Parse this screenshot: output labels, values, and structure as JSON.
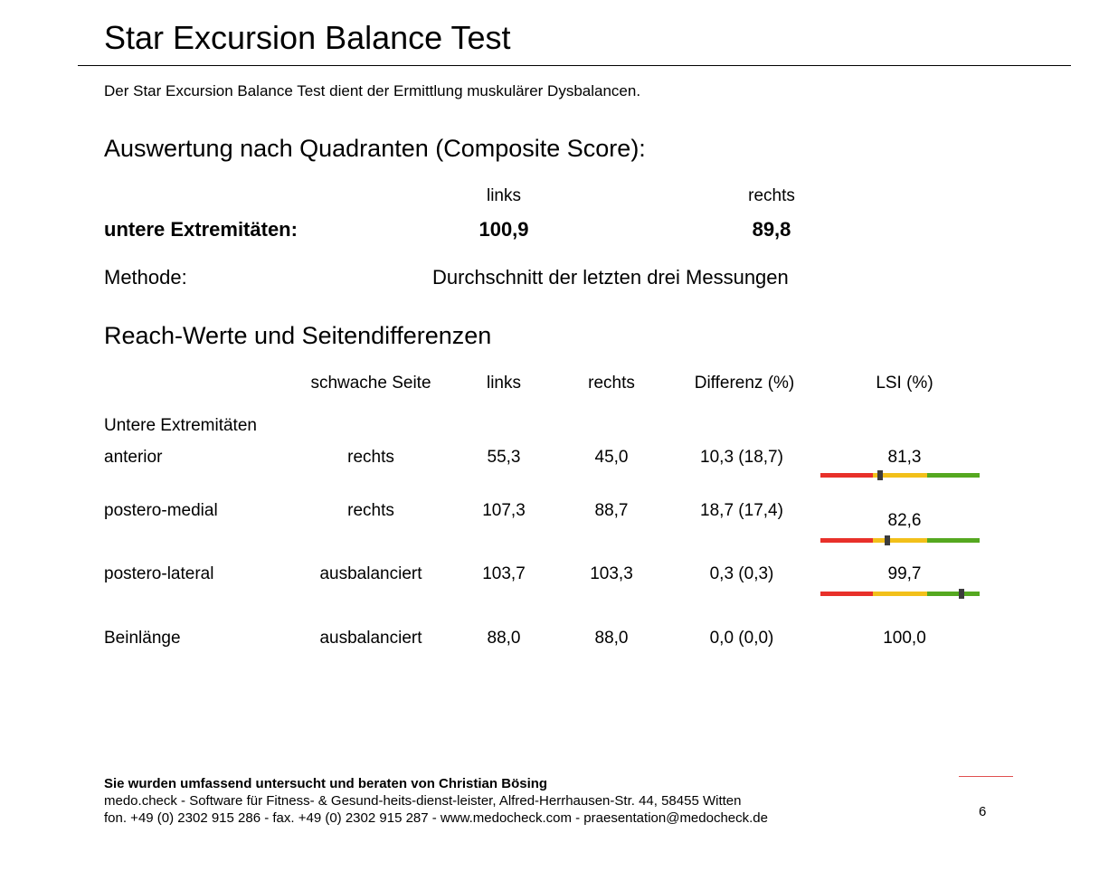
{
  "header": {
    "title": "Star Excursion Balance Test",
    "intro": "Der Star Excursion Balance Test dient der Ermittlung muskulärer Dysbalancen."
  },
  "composite": {
    "heading": "Auswertung nach Quadranten (Composite Score):",
    "col_left": "links",
    "col_right": "rechts",
    "row_label": "untere Extremitäten:",
    "left_value": "100,9",
    "right_value": "89,8",
    "method_label": "Methode:",
    "method_value": "Durchschnitt der letzten drei Messungen"
  },
  "reach": {
    "heading": "Reach-Werte und Seitendifferenzen",
    "columns": {
      "weak_side": "schwache Seite",
      "left": "links",
      "right": "rechts",
      "diff": "Differenz (%)",
      "lsi": "LSI (%)"
    },
    "group_label": "Untere Extremitäten",
    "rows": [
      {
        "label": "anterior",
        "weak_side": "rechts",
        "left": "55,3",
        "right": "45,0",
        "diff": "10,3 (18,7)",
        "lsi": "81,3",
        "lsi_level": 81.3
      },
      {
        "label": "postero-medial",
        "weak_side": "rechts",
        "left": "107,3",
        "right": "88,7",
        "diff": "18,7 (17,4)",
        "lsi": "82,6",
        "lsi_level": 82.6
      },
      {
        "label": "postero-lateral",
        "weak_side": "ausbalanciert",
        "left": "103,7",
        "right": "103,3",
        "diff": "0,3 (0,3)",
        "lsi": "99,7",
        "lsi_level": 99.7
      },
      {
        "label": "Beinlänge",
        "weak_side": "ausbalanciert",
        "left": "88,0",
        "right": "88,0",
        "diff": "0,0 (0,0)",
        "lsi": "100,0"
      }
    ]
  },
  "colors": {
    "bar_red": "#e8302a",
    "bar_yellow": "#f2c01a",
    "bar_green": "#55a820",
    "marker": "#3c3c3c",
    "accent_line": "#e05050"
  },
  "footer": {
    "advisor": "Sie wurden umfassend untersucht und beraten von Christian Bösing",
    "company": "medo.check - Software für Fitness- & Gesund-heits-dienst-leister, Alfred-Herrhausen-Str. 44, 58455 Witten",
    "contact": "fon. +49 (0) 2302 915 286 - fax. +49 (0) 2302 915 287 - www.medocheck.com - praesentation@medocheck.de",
    "page_number": "6"
  }
}
